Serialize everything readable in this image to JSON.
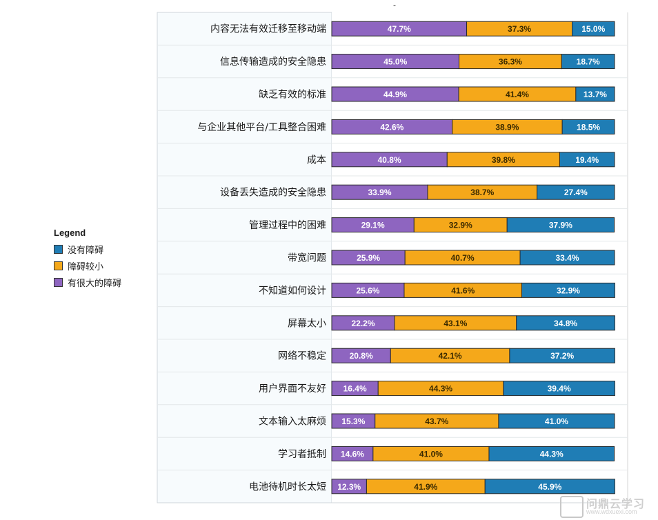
{
  "chart_data": {
    "type": "bar",
    "orientation": "horizontal",
    "stacked": true,
    "title": "-",
    "categories": [
      "内容无法有效迁移至移动端",
      "信息传输造成的安全隐患",
      "缺乏有效的标准",
      "与企业其他平台/工具整合困难",
      "成本",
      "设备丢失造成的安全隐患",
      "管理过程中的困难",
      "带宽问题",
      "不知道如何设计",
      "屏幕太小",
      "网络不稳定",
      "用户界面不友好",
      "文本输入太麻烦",
      "学习者抵制",
      "电池待机时长太短"
    ],
    "series": [
      {
        "name": "有很大的障碍",
        "color": "#8e65c0",
        "values": [
          47.7,
          45.0,
          44.9,
          42.6,
          40.8,
          33.9,
          29.1,
          25.9,
          25.6,
          22.2,
          20.8,
          16.4,
          15.3,
          14.6,
          12.3
        ],
        "labels": [
          "47.7%",
          "45.0%",
          "44.9%",
          "42.6%",
          "40.8%",
          "33.9%",
          "29.1%",
          "25.9%",
          "25.6%",
          "22.2%",
          "20.8%",
          "16.4%",
          "15.3%",
          "14.6%",
          "12.3%"
        ]
      },
      {
        "name": "障碍较小",
        "color": "#f5a81a",
        "values": [
          37.3,
          36.3,
          41.4,
          38.9,
          39.8,
          38.7,
          32.9,
          40.7,
          41.6,
          43.1,
          42.1,
          44.3,
          43.7,
          41.0,
          41.9
        ],
        "labels": [
          "37.3%",
          "36.3%",
          "41.4%",
          "38.9%",
          "39.8%",
          "38.7%",
          "32.9%",
          "40.7%",
          "41.6%",
          "43.1%",
          "42.1%",
          "44.3%",
          "43.7%",
          "41.0%",
          "41.9%"
        ]
      },
      {
        "name": "没有障碍",
        "color": "#1f7db5",
        "values": [
          15.0,
          18.7,
          13.7,
          18.5,
          19.4,
          27.4,
          37.9,
          33.4,
          32.9,
          34.8,
          37.2,
          39.4,
          41.0,
          44.3,
          45.9
        ],
        "labels": [
          "15.0%",
          "18.7%",
          "13.7%",
          "18.5%",
          "19.4%",
          "27.4%",
          "37.9%",
          "33.4%",
          "32.9%",
          "34.8%",
          "37.2%",
          "39.4%",
          "41.0%",
          "44.3%",
          "45.9%"
        ]
      }
    ],
    "xlim": [
      0,
      100
    ],
    "grid": true,
    "legend_position": "left"
  },
  "legend": {
    "title": "Legend",
    "items": [
      {
        "label": "没有障碍",
        "color": "#1f7db5"
      },
      {
        "label": "障碍较小",
        "color": "#f5a81a"
      },
      {
        "label": "有很大的障碍",
        "color": "#8e65c0"
      }
    ]
  },
  "watermark": {
    "text": "问鼎云学习",
    "url": "www.wdxuexi.com",
    "icon": "logo-box-icon"
  }
}
